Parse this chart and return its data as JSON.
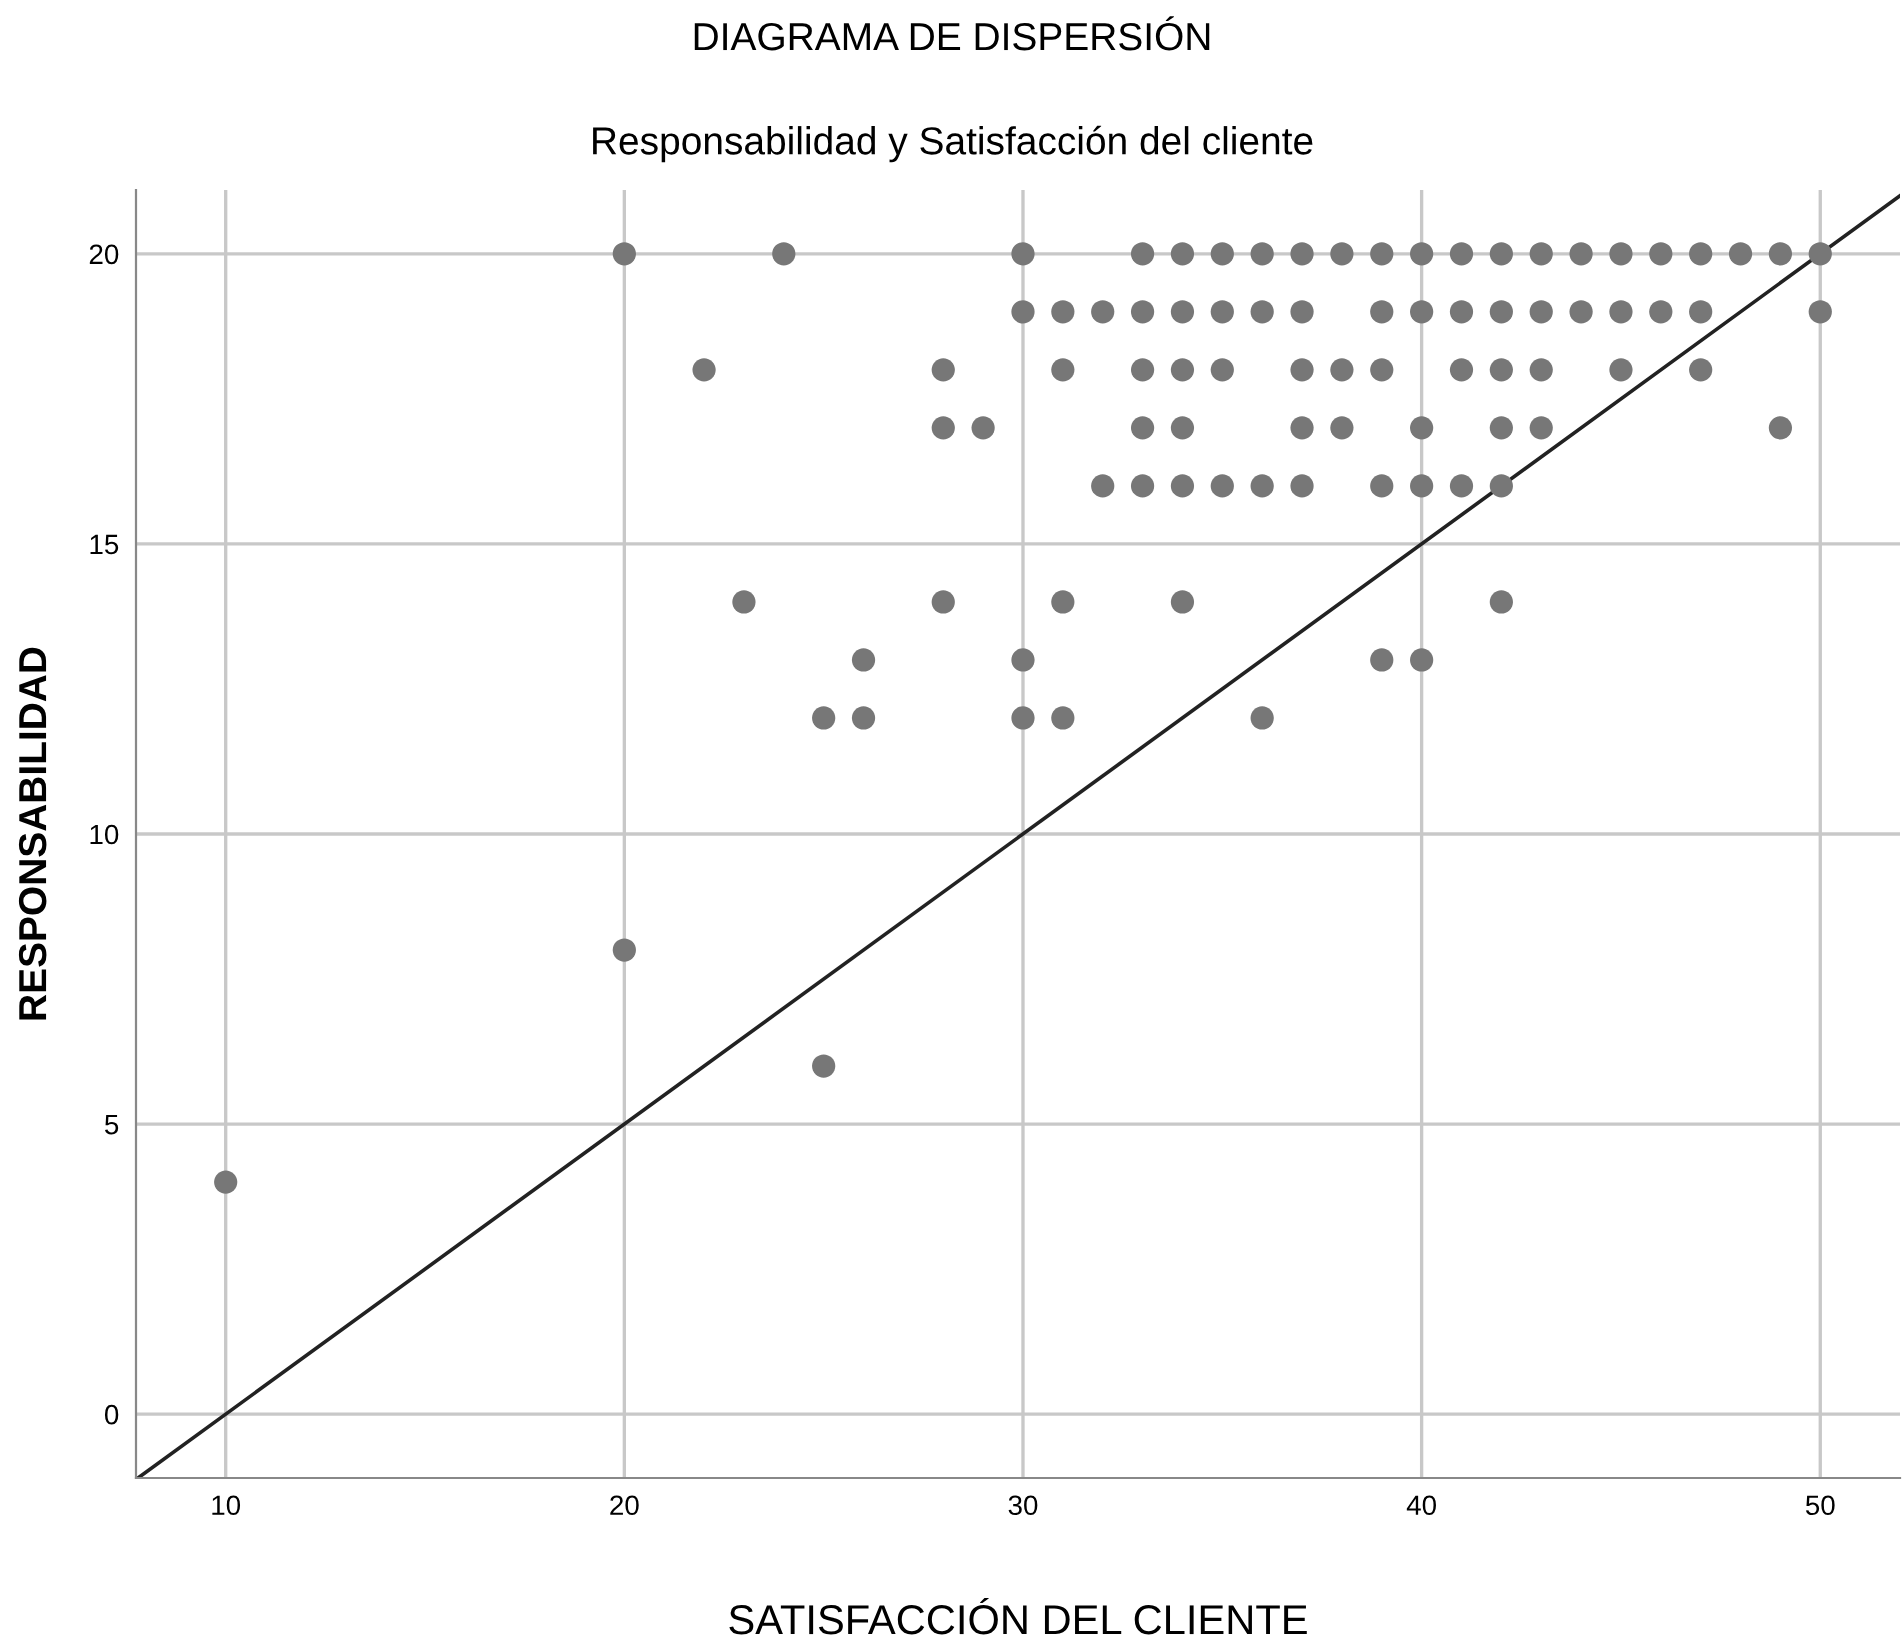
{
  "chart_data": {
    "type": "scatter",
    "title": "DIAGRAMA DE DISPERSIÓN",
    "subtitle": "Responsabilidad y Satisfacción del cliente",
    "xlabel": "SATISFACCIÓN DEL CLIENTE",
    "ylabel": "RESPONSABILIDAD",
    "xlim": [
      7.75,
      52
    ],
    "ylim": [
      -1.1,
      21.1
    ],
    "xticks": [
      10,
      20,
      30,
      40,
      50
    ],
    "yticks": [
      0,
      5,
      10,
      15,
      20
    ],
    "grid": true,
    "marker": "circle",
    "series": [
      {
        "color": "#777777",
        "x": [
          20,
          24,
          30,
          33,
          34,
          35,
          36,
          37,
          38,
          39,
          40,
          41,
          42,
          43,
          44,
          45,
          46,
          47,
          48,
          49,
          50,
          30,
          31,
          32,
          33,
          34,
          35,
          36,
          37,
          39,
          40,
          41,
          42,
          43,
          44,
          45,
          46,
          47,
          50,
          22,
          28,
          31,
          33,
          34,
          35,
          37,
          38,
          39,
          41,
          42,
          43,
          45,
          47,
          28,
          29,
          33,
          34,
          37,
          38,
          40,
          42,
          43,
          49,
          32,
          33,
          34,
          35,
          36,
          37,
          39,
          40,
          41,
          42,
          23,
          28,
          31,
          34,
          42,
          26,
          30,
          39,
          40,
          25,
          26,
          30,
          31,
          36,
          20,
          25,
          10
        ],
        "values": [
          20,
          20,
          20,
          20,
          20,
          20,
          20,
          20,
          20,
          20,
          20,
          20,
          20,
          20,
          20,
          20,
          20,
          20,
          20,
          20,
          20,
          19,
          19,
          19,
          19,
          19,
          19,
          19,
          19,
          19,
          19,
          19,
          19,
          19,
          19,
          19,
          19,
          19,
          19,
          18,
          18,
          18,
          18,
          18,
          18,
          18,
          18,
          18,
          18,
          18,
          18,
          18,
          18,
          17,
          17,
          17,
          17,
          17,
          17,
          17,
          17,
          17,
          17,
          16,
          16,
          16,
          16,
          16,
          16,
          16,
          16,
          16,
          16,
          14,
          14,
          14,
          14,
          14,
          13,
          13,
          13,
          13,
          12,
          12,
          12,
          12,
          12,
          8,
          6,
          4
        ]
      },
      {
        "type": "line",
        "color": "#222222",
        "marker": "none",
        "x": [
          7.8,
          52
        ],
        "values": [
          -1.1,
          21
        ]
      }
    ]
  }
}
